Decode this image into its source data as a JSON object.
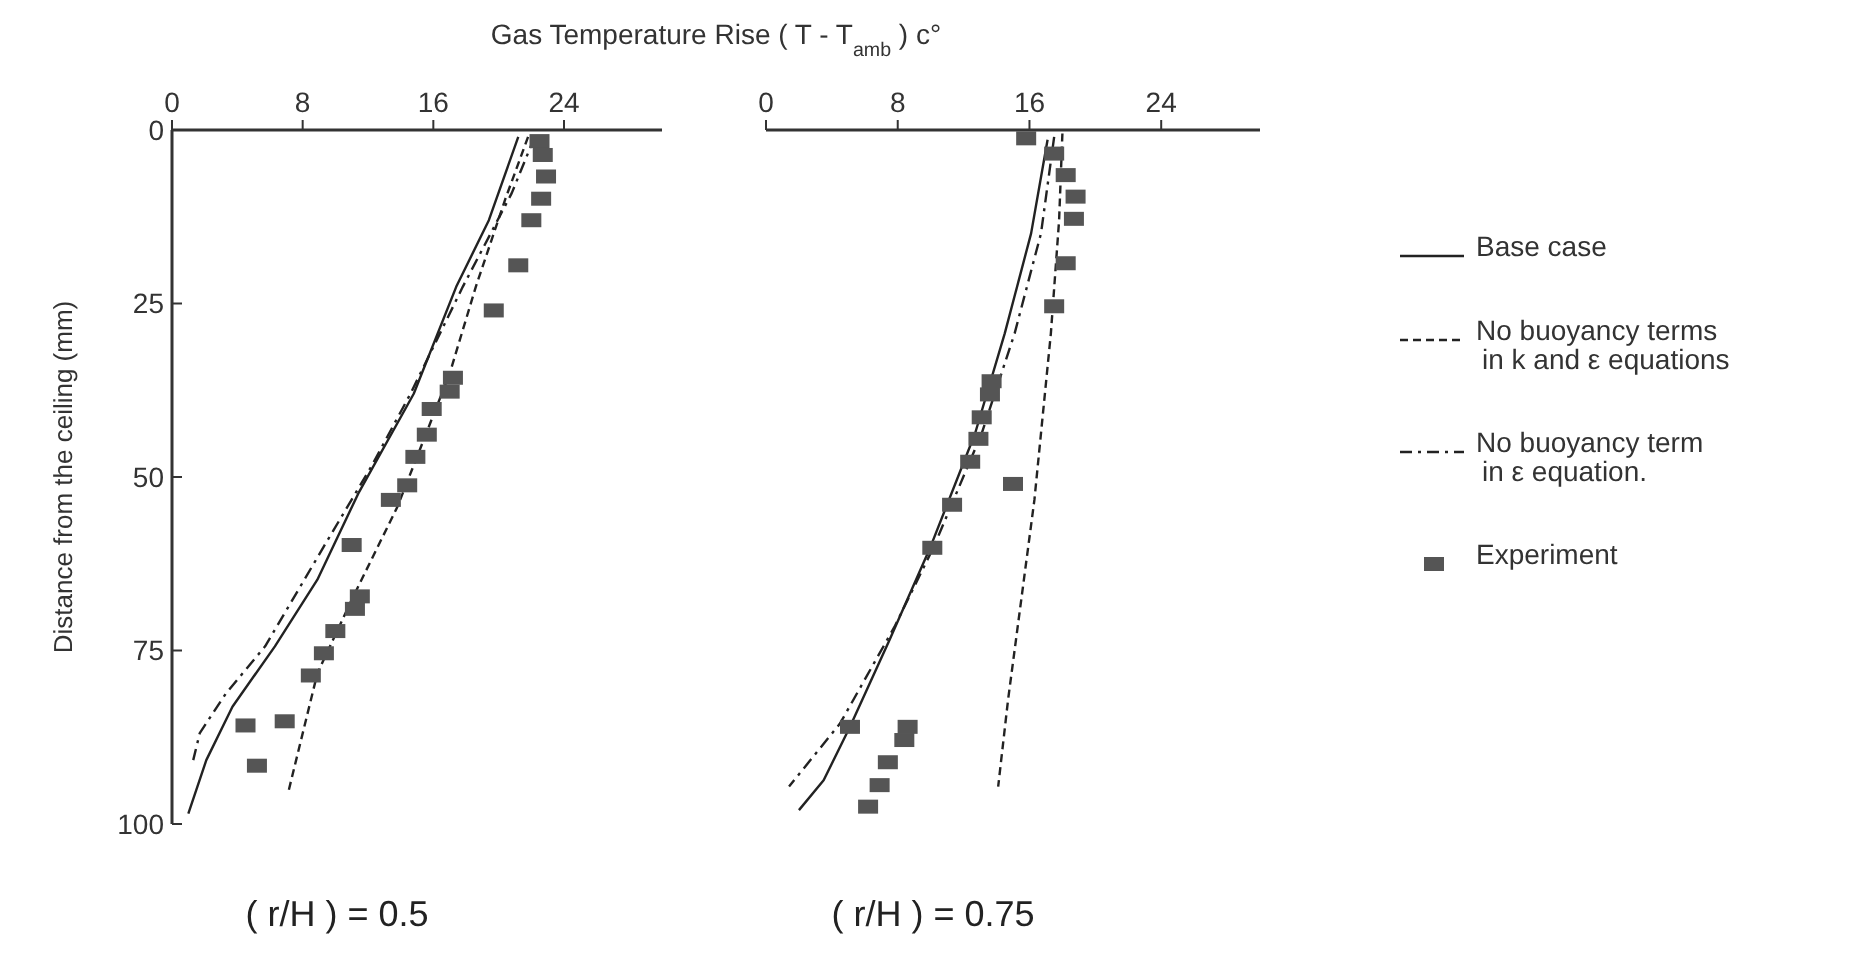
{
  "chart_data": [
    {
      "type": "line",
      "title": "( r/H ) = 0.5",
      "xlabel": "Gas Temperature Rise ( T - T$_{amb}$ ) c°",
      "ylabel": "Distance from the ceiling (mm)",
      "xlim": [
        0,
        30
      ],
      "xticks": [
        0,
        8,
        16,
        24
      ],
      "ylim": [
        100,
        0
      ],
      "yticks": [
        0,
        25,
        50,
        75,
        100
      ],
      "legend": "right",
      "grid": false,
      "series": [
        {
          "name": "Base case",
          "color": "#222222",
          "line_style": "solid",
          "x": [
            21.2,
            19.4,
            17.4,
            14.8,
            11.4,
            8.9,
            6.3,
            3.7,
            2.1,
            1.0
          ],
          "values": [
            1,
            13,
            22.6,
            38,
            52.4,
            64.8,
            74.4,
            83.1,
            90.8,
            98.5
          ]
        },
        {
          "name": "No buoyancy terms in k and ε equations",
          "color": "#222222",
          "line_style": "dashed",
          "x": [
            21.8,
            20.4,
            18.6,
            17.0,
            13.8,
            11.0,
            8.9,
            7.1
          ],
          "values": [
            1,
            10,
            22.6,
            35.1,
            54.3,
            67.7,
            78.3,
            95.6
          ]
        },
        {
          "name": "No buoyancy term in ε equation.",
          "color": "#222222",
          "line_style": "dashdot",
          "x": [
            22.2,
            20.8,
            17.8,
            14.6,
            12.2,
            9.3,
            5.7,
            3.3,
            1.7,
            1.3
          ],
          "values": [
            1,
            9.1,
            22.6,
            38,
            48.5,
            60,
            74.4,
            81.2,
            86.9,
            90.8
          ]
        },
        {
          "name": "Experiment",
          "type": "scatter",
          "marker": "square",
          "color": "#555555",
          "x": [
            22.5,
            22.7,
            22.9,
            22.6,
            22.0,
            21.2,
            19.7,
            17.2,
            17.0,
            15.9,
            15.6,
            14.9,
            14.4,
            13.4,
            11.0,
            11.5,
            11.2,
            10.0,
            9.3,
            8.5,
            6.9,
            4.5,
            5.2
          ],
          "values": [
            1.6,
            3.6,
            6.7,
            9.9,
            13,
            19.5,
            26,
            35.7,
            37.7,
            40.2,
            43.9,
            47.1,
            51.2,
            53.3,
            59.8,
            67.2,
            69,
            72.2,
            75.4,
            78.6,
            85.2,
            85.8,
            91.6
          ]
        }
      ]
    },
    {
      "type": "line",
      "title": "( r/H ) = 0.75",
      "xlim": [
        0,
        30
      ],
      "xticks": [
        0,
        8,
        16,
        24
      ],
      "ylim": [
        100,
        0
      ],
      "tick_labels": "x",
      "grid": false,
      "series": [
        {
          "color": "#222222",
          "line_style": "solid",
          "x": [
            17.1,
            16.1,
            14.5,
            12.7,
            10.0,
            7.5,
            5.1,
            3.5,
            2.0
          ],
          "values": [
            1.4,
            14.9,
            29.3,
            43.7,
            60,
            73.5,
            86,
            93.7,
            98
          ]
        },
        {
          "color": "#222222",
          "line_style": "dashed",
          "x": [
            18.0,
            17.8,
            17.3,
            16.3,
            15.5,
            14.7,
            14.1
          ],
          "values": [
            0.5,
            13,
            29.3,
            53.3,
            67.7,
            82.1,
            94.6
          ]
        },
        {
          "color": "#222222",
          "line_style": "dashdot",
          "x": [
            17.5,
            16.7,
            15.1,
            13.1,
            10.2,
            7.8,
            4.5,
            1.4
          ],
          "values": [
            1,
            14.9,
            29.3,
            43.7,
            60,
            71.6,
            85.5,
            94.6
          ]
        },
        {
          "type": "scatter",
          "marker": "square",
          "color": "#555555",
          "x": [
            15.8,
            17.5,
            18.2,
            18.8,
            18.7,
            18.2,
            17.5,
            13.7,
            13.6,
            13.1,
            12.9,
            12.4,
            15.0,
            11.3,
            10.1,
            5.1,
            8.6,
            8.4,
            7.4,
            6.9,
            6.2
          ],
          "values": [
            1.2,
            3.4,
            6.5,
            9.6,
            12.8,
            19.2,
            25.4,
            36.2,
            38.1,
            41.4,
            44.5,
            47.8,
            51,
            54,
            60.2,
            86,
            86,
            87.9,
            91.1,
            94.4,
            97.5
          ]
        }
      ]
    }
  ]
}
